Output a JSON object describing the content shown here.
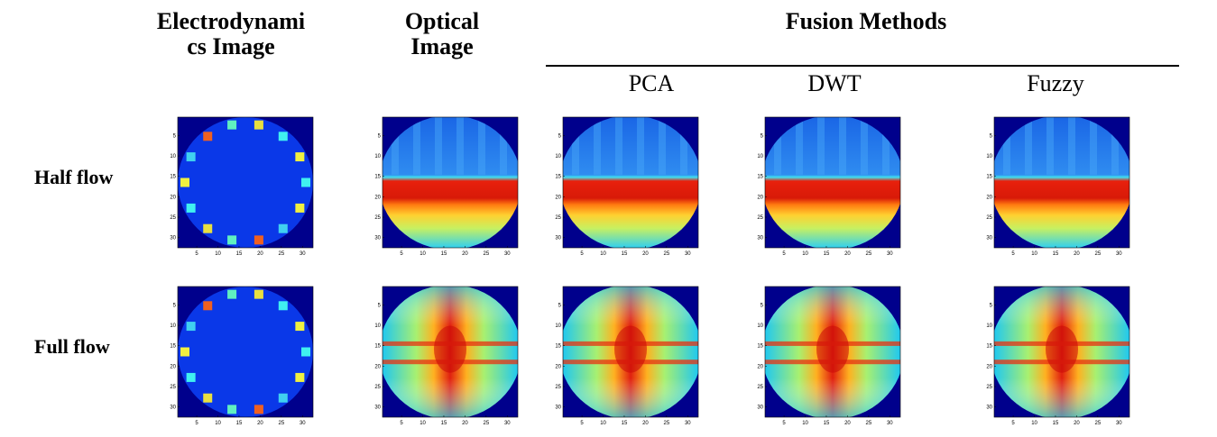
{
  "columns": [
    "Electrodynamics Image",
    "Optical Image"
  ],
  "group": {
    "title": "Fusion Methods",
    "methods": [
      "PCA",
      "DWT",
      "Fuzzy"
    ]
  },
  "rows": [
    "Half flow",
    "Full flow"
  ],
  "axis_ticks": [
    5,
    10,
    15,
    20,
    25,
    30
  ]
}
